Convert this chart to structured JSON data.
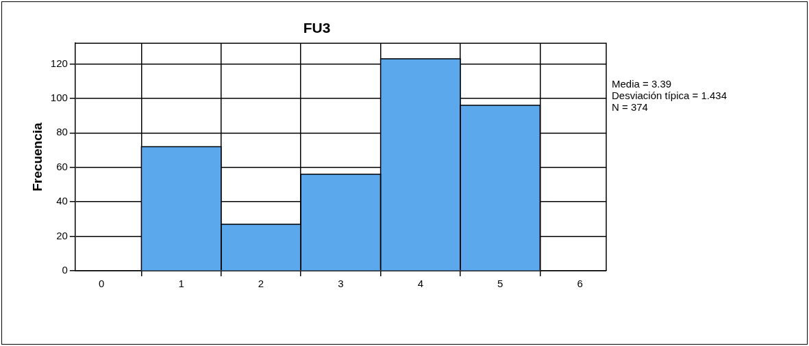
{
  "chart_data": {
    "type": "histogram",
    "title": "FU3",
    "ylabel": "Frecuencia",
    "bins": [
      0.5,
      1.5,
      2.5,
      3.5,
      4.5,
      5.5
    ],
    "values": [
      72,
      27,
      56,
      123,
      96
    ],
    "color": "#5ba8ec",
    "xlim": [
      -0.33,
      6.33
    ],
    "xticks": [
      0,
      1,
      2,
      3,
      4,
      5,
      6
    ],
    "ylim": [
      0,
      132
    ],
    "yticks": [
      0,
      20,
      40,
      60,
      80,
      100,
      120
    ],
    "grid": true,
    "annotations": [
      "Media = 3.39",
      "Desviación típica = 1.434",
      "N = 374"
    ]
  }
}
